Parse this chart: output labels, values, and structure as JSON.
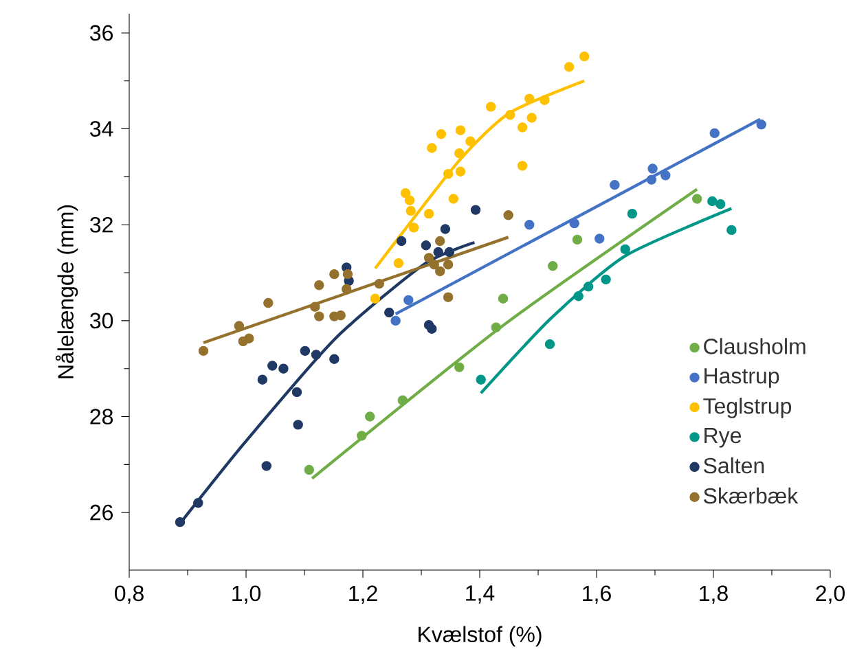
{
  "chart_data": {
    "type": "scatter",
    "xlabel": "Kvælstof (%)",
    "ylabel": "Nålelængde (mm)",
    "xlim": [
      0.8,
      2.0
    ],
    "ylim": [
      24.8,
      36.4
    ],
    "xticks": [
      {
        "value": 0.8,
        "label": "0,8"
      },
      {
        "value": 1.0,
        "label": "1,0"
      },
      {
        "value": 1.2,
        "label": "1,2"
      },
      {
        "value": 1.4,
        "label": "1,4"
      },
      {
        "value": 1.6,
        "label": "1,6"
      },
      {
        "value": 1.8,
        "label": "1,8"
      },
      {
        "value": 2.0,
        "label": "2,0"
      }
    ],
    "yticks": [
      26,
      28,
      30,
      32,
      34,
      36
    ],
    "legend": "bottom right",
    "marker": "circle",
    "series": [
      {
        "name": "Clausholm",
        "color": "#70ad47",
        "x": [
          1.108,
          1.198,
          1.212,
          1.268,
          1.365,
          1.428,
          1.44,
          1.525,
          1.567,
          1.772
        ],
        "values": [
          26.89,
          27.6,
          28.0,
          28.34,
          29.03,
          29.86,
          30.46,
          31.14,
          31.69,
          32.54
        ]
      },
      {
        "name": "Hastrup",
        "color": "#4472c4",
        "x": [
          1.256,
          1.278,
          1.485,
          1.562,
          1.605,
          1.631,
          1.696,
          1.694,
          1.718,
          1.802,
          1.882
        ],
        "values": [
          30.0,
          30.43,
          32.0,
          32.03,
          31.71,
          32.83,
          33.17,
          32.94,
          33.03,
          33.91,
          34.09
        ]
      },
      {
        "name": "Teglstrup",
        "color": "#ffc000",
        "x": [
          1.221,
          1.261,
          1.273,
          1.28,
          1.282,
          1.287,
          1.313,
          1.318,
          1.334,
          1.346,
          1.355,
          1.365,
          1.367,
          1.367,
          1.384,
          1.419,
          1.452,
          1.473,
          1.473,
          1.485,
          1.489,
          1.511,
          1.553,
          1.579
        ],
        "values": [
          30.46,
          31.2,
          32.66,
          32.51,
          32.29,
          31.94,
          32.23,
          33.6,
          33.89,
          33.06,
          32.54,
          33.49,
          33.11,
          33.97,
          33.74,
          34.46,
          34.29,
          33.23,
          34.03,
          34.63,
          34.23,
          34.6,
          35.29,
          35.51
        ]
      },
      {
        "name": "Rye",
        "color": "#009688",
        "x": [
          1.402,
          1.52,
          1.569,
          1.586,
          1.616,
          1.649,
          1.661,
          1.798,
          1.812,
          1.831
        ],
        "values": [
          28.77,
          29.51,
          30.51,
          30.71,
          30.86,
          31.49,
          32.23,
          32.49,
          32.43,
          31.89
        ]
      },
      {
        "name": "Salten",
        "color": "#1f3864",
        "x": [
          0.887,
          0.918,
          1.035,
          1.089,
          1.028,
          1.045,
          1.064,
          1.087,
          1.101,
          1.12,
          1.151,
          1.245,
          1.172,
          1.176,
          1.266,
          1.308,
          1.341,
          1.329,
          1.348,
          1.393,
          1.313,
          1.318
        ],
        "values": [
          25.8,
          26.2,
          26.97,
          27.83,
          28.77,
          29.06,
          29.0,
          28.51,
          29.37,
          29.29,
          29.2,
          30.17,
          31.11,
          30.83,
          31.66,
          31.57,
          31.91,
          31.43,
          31.43,
          32.31,
          29.91,
          29.83
        ]
      },
      {
        "name": "Skærbæk",
        "color": "#94722d",
        "x": [
          0.927,
          0.988,
          0.995,
          1.005,
          1.038,
          1.118,
          1.125,
          1.151,
          1.162,
          1.125,
          1.151,
          1.174,
          1.172,
          1.228,
          1.332,
          1.313,
          1.322,
          1.346,
          1.332,
          1.346,
          1.449
        ],
        "values": [
          29.37,
          29.89,
          29.57,
          29.63,
          30.37,
          30.29,
          30.09,
          30.09,
          30.11,
          30.74,
          30.97,
          30.97,
          30.66,
          30.77,
          31.66,
          31.31,
          31.17,
          31.17,
          31.03,
          30.49,
          32.2
        ]
      },
      {
        "type": "line",
        "marker": "none",
        "color": "#70ad47",
        "x": [
          1.113,
          1.44,
          1.772
        ],
        "values": [
          26.71,
          29.9,
          32.74
        ]
      },
      {
        "type": "line",
        "marker": "none",
        "color": "#4472c4",
        "x": [
          1.256,
          1.88
        ],
        "values": [
          30.14,
          34.2
        ]
      },
      {
        "type": "line",
        "marker": "none",
        "color": "#ffc000",
        "x": [
          1.221,
          1.365,
          1.452,
          1.579
        ],
        "values": [
          31.09,
          33.34,
          34.34,
          35.0
        ]
      },
      {
        "type": "line",
        "marker": "none",
        "color": "#009688",
        "x": [
          1.402,
          1.522,
          1.649,
          1.831
        ],
        "values": [
          28.49,
          30.05,
          31.35,
          32.34
        ]
      },
      {
        "type": "line",
        "marker": "none",
        "color": "#1f3864",
        "x": [
          0.887,
          0.998,
          1.153,
          1.304,
          1.391
        ],
        "values": [
          25.77,
          27.46,
          29.63,
          31.17,
          31.63
        ]
      },
      {
        "type": "line",
        "marker": "none",
        "color": "#94722d",
        "x": [
          0.927,
          1.449
        ],
        "values": [
          29.54,
          31.74
        ]
      }
    ]
  }
}
